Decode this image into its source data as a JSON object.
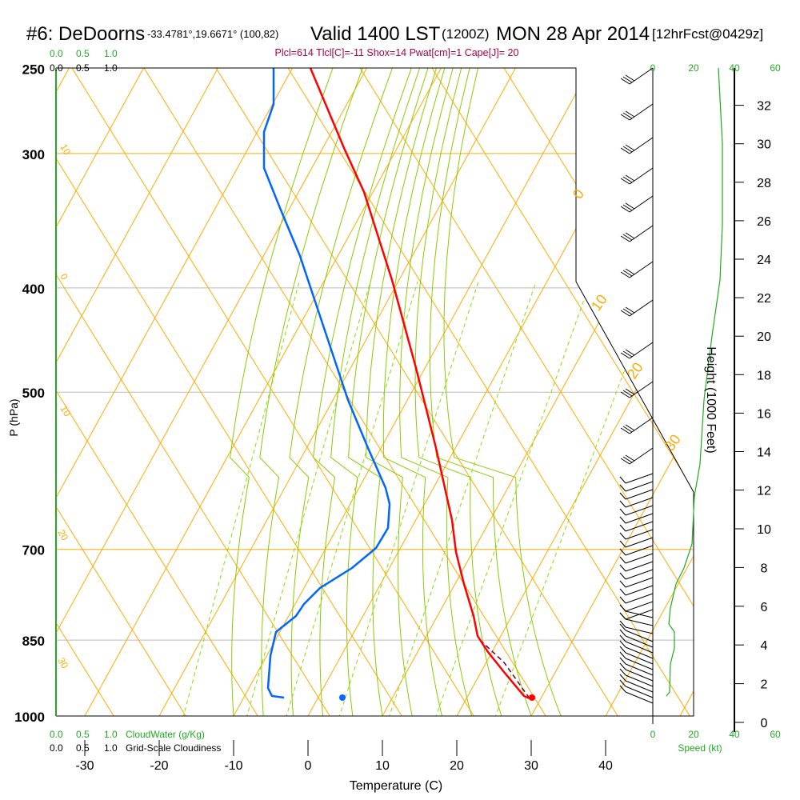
{
  "header": {
    "station": "#6: DeDoorns",
    "coords": "-33.4781°,19.6671° (100,82)",
    "valid": "Valid 1400 LST",
    "utc": "(1200Z)",
    "date": "MON 28 Apr 2014",
    "forecast": "[12hrFcst@0429z]",
    "indices": "Plcl=614 Tlcl[C]=-11 Shox=14 Pwat[cm]=1 Cape[J]= 20"
  },
  "colors": {
    "temperature": "#ff0000",
    "dewpoint": "#0066ff",
    "isotherm": "#ffaa00",
    "moist_adiabat": "#88cc00",
    "mixing_ratio": "#88dd00",
    "cloud": "#22aa22",
    "indices": "#aa0044",
    "speed": "#22aa22"
  },
  "chart_data": {
    "type": "line",
    "subtype": "skew-t log-p sounding",
    "xlabel": "Temperature (C)",
    "ylabel": "P (hPa)",
    "y2label": "Height (1000 Feet)",
    "x_ticks": [
      "-30",
      "-20",
      "-10",
      "0",
      "10",
      "20",
      "30",
      "40"
    ],
    "p_ticks": [
      "250",
      "300",
      "400",
      "500",
      "700",
      "850",
      "1000"
    ],
    "height_ticks": [
      "0",
      "2",
      "4",
      "6",
      "8",
      "10",
      "12",
      "14",
      "16",
      "18",
      "20",
      "22",
      "24",
      "26",
      "28",
      "30",
      "32"
    ],
    "cloud_top": {
      "ticks": [
        "0.0",
        "0.5",
        "1.0"
      ],
      "ticks_black": [
        "0.0",
        "0.5",
        "1.0"
      ]
    },
    "cloud_bottom": {
      "ticks": [
        "0.0",
        "0.5",
        "1.0"
      ],
      "label": "CloudWater (g/Kg)",
      "ticks_black": [
        "0.0",
        "0.5",
        "1.0"
      ],
      "label_black": "Grid-Scale Cloudiness"
    },
    "speed_ticks": [
      "0",
      "20",
      "40",
      "60"
    ],
    "speed_label": "Speed (kt)",
    "adiabat_labels_left": [
      "10",
      "0",
      "10",
      "20",
      "30"
    ],
    "isotherm_labels_right": [
      "0",
      "10",
      "20",
      "30"
    ],
    "mixing_ratio_labels": [
      "1",
      "2",
      "3",
      "5",
      "8",
      "12",
      "20"
    ],
    "surface": {
      "temperature_c": 30,
      "dewpoint_c": 5
    },
    "temperature_profile": [
      [
        250,
        -47
      ],
      [
        300,
        -40
      ],
      [
        400,
        -26
      ],
      [
        500,
        -14
      ],
      [
        600,
        -5
      ],
      [
        700,
        1
      ],
      [
        800,
        7
      ],
      [
        850,
        12
      ],
      [
        900,
        19
      ],
      [
        975,
        29
      ]
    ],
    "dewpoint_profile": [
      [
        250,
        -72
      ],
      [
        300,
        -76
      ],
      [
        400,
        -65
      ],
      [
        500,
        -50
      ],
      [
        600,
        -32
      ],
      [
        650,
        -22
      ],
      [
        700,
        -25
      ],
      [
        800,
        -40
      ],
      [
        850,
        -45
      ],
      [
        975,
        -16
      ]
    ]
  }
}
